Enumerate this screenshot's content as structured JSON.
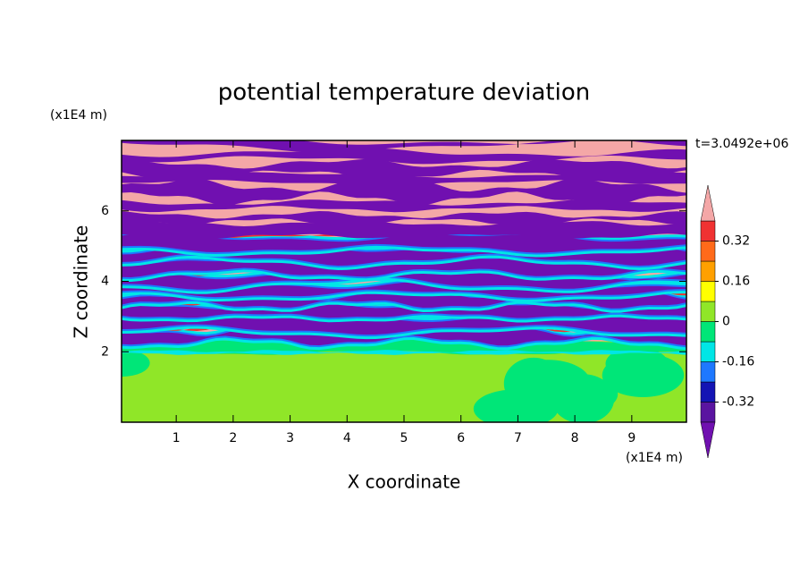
{
  "chart_data": {
    "type": "contour",
    "title": "potential temperature deviation",
    "x_label": "X coordinate",
    "y_label": "Z coordinate",
    "x_unit": "(x1E4 m)",
    "y_unit": "(x1E4 m)",
    "annotation": "t=3.0492e+06",
    "xlim": [
      0.04,
      9.96
    ],
    "xticks": [
      1,
      2,
      3,
      4,
      5,
      6,
      7,
      8,
      9
    ],
    "ylim": [
      0,
      8
    ],
    "yticks": [
      2,
      4,
      6
    ],
    "colorbar": {
      "levels": [
        -0.4,
        -0.32,
        -0.24,
        -0.16,
        -0.08,
        0,
        0.08,
        0.16,
        0.24,
        0.32,
        0.4
      ],
      "ticks": [
        -0.32,
        -0.16,
        0,
        0.16,
        0.32
      ],
      "colors": [
        "#7010b0",
        "#5a14a0",
        "#1414b4",
        "#1e78ff",
        "#00e6e6",
        "#00e678",
        "#90e628",
        "#ffff00",
        "#ffa000",
        "#ff6a1a",
        "#f03232",
        "#f4a7a7"
      ]
    }
  }
}
